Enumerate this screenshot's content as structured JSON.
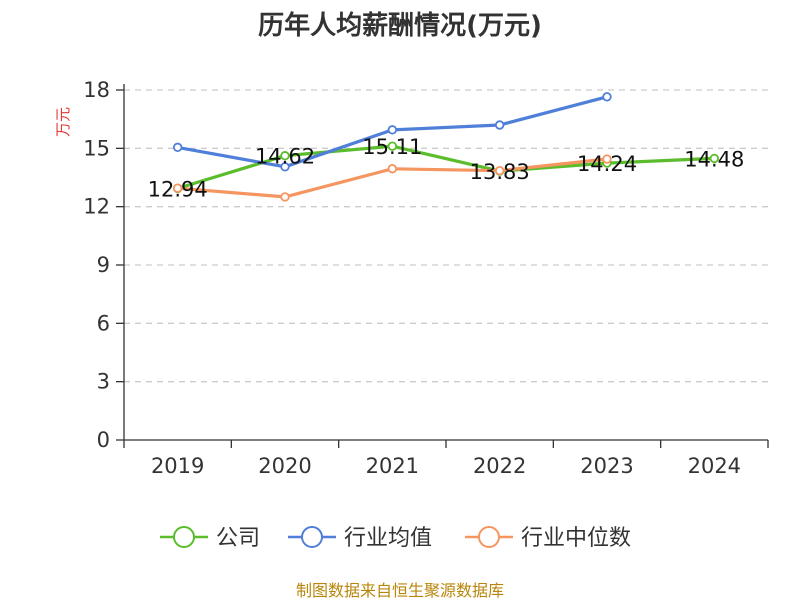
{
  "chart_data": {
    "type": "line",
    "title": "历年人均薪酬情况(万元)",
    "ylabel": "万元",
    "xlabel": "",
    "categories": [
      "2019",
      "2020",
      "2021",
      "2022",
      "2023",
      "2024"
    ],
    "ylim": [
      0,
      18
    ],
    "yticks": [
      0,
      3,
      6,
      9,
      12,
      15,
      18
    ],
    "grid": true,
    "legend_position": "bottom",
    "series": [
      {
        "name": "公司",
        "color": "#5bbd2b",
        "values": [
          12.94,
          14.62,
          15.11,
          13.83,
          14.24,
          14.48
        ],
        "data_labels": [
          "12.94",
          "14.62",
          "15.11",
          "13.83",
          "14.24",
          "14.48"
        ]
      },
      {
        "name": "行业均值",
        "color": "#4f7fd9",
        "values": [
          15.05,
          14.05,
          15.95,
          16.2,
          17.65,
          null
        ]
      },
      {
        "name": "行业中位数",
        "color": "#f59560",
        "values": [
          12.95,
          12.5,
          13.95,
          13.85,
          14.45,
          null
        ]
      }
    ],
    "source": "制图数据来自恒生聚源数据库"
  }
}
